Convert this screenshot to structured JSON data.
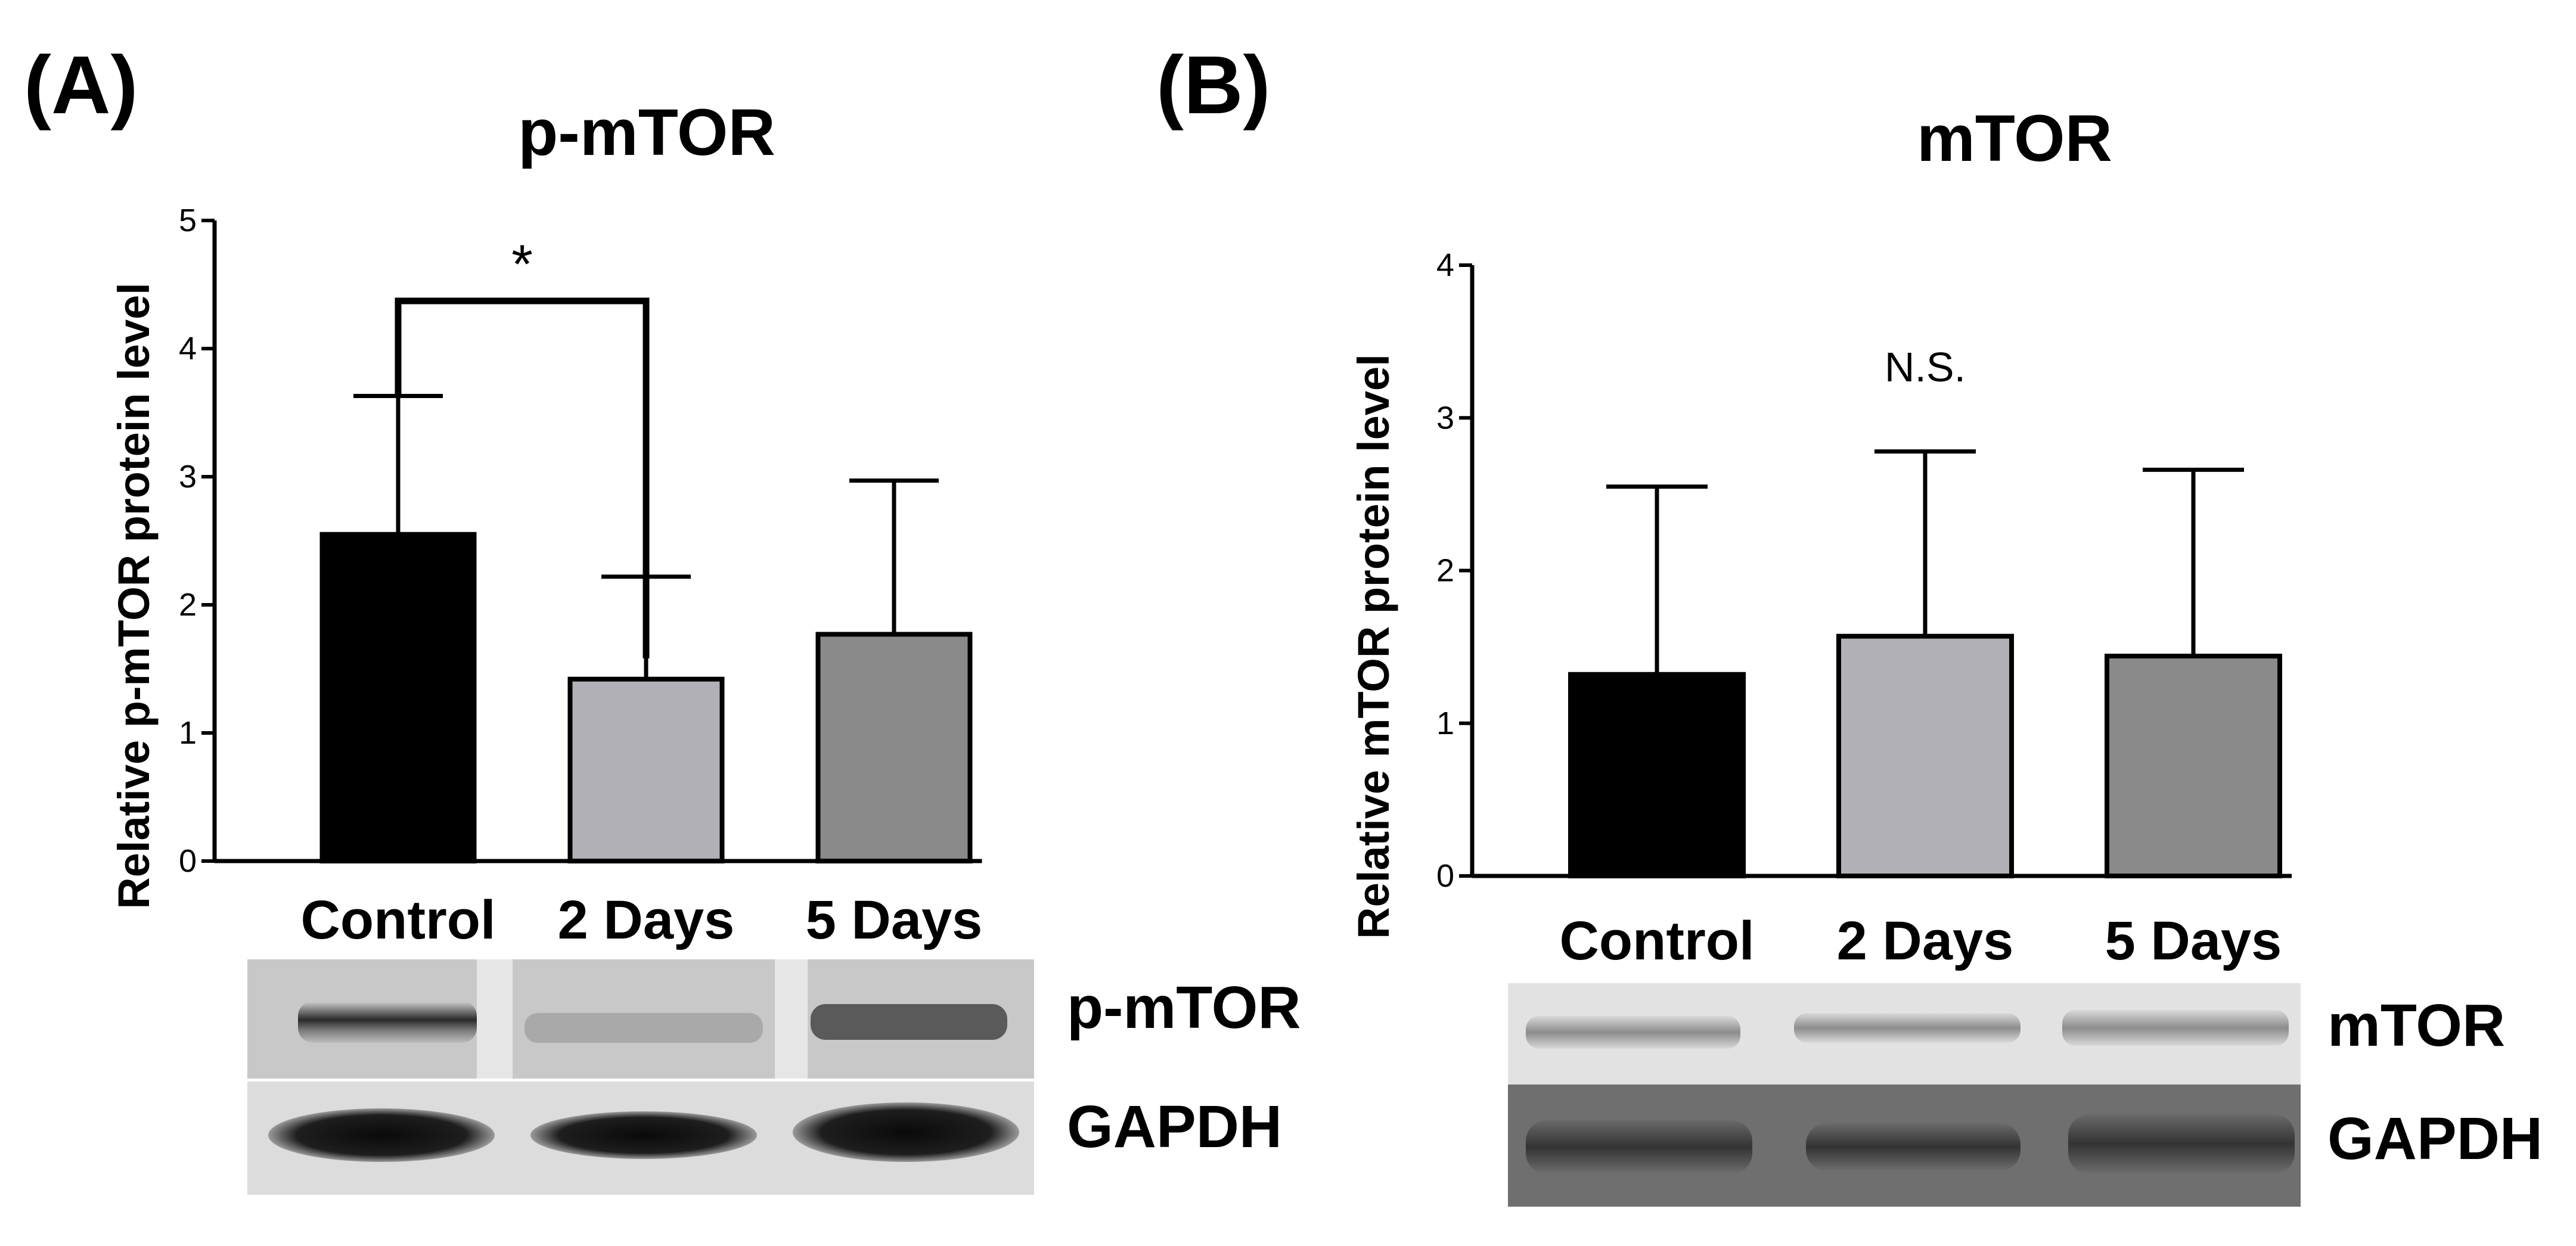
{
  "panels": {
    "a": {
      "label": "(A)"
    },
    "b": {
      "label": "(B)"
    }
  },
  "blots": {
    "a": {
      "band_top": "p-mTOR",
      "band_bottom": "GAPDH"
    },
    "b": {
      "band_top": "mTOR",
      "band_bottom": "GAPDH"
    }
  },
  "chart_data": [
    {
      "type": "bar",
      "title": "p-mTOR",
      "ylabel": "Relative p-mTOR protein level",
      "xlabel": "",
      "categories": [
        "Control",
        "2 Days",
        "5 Days"
      ],
      "values": [
        2.55,
        1.42,
        1.77
      ],
      "error_upper": [
        1.08,
        0.8,
        1.2
      ],
      "ylim": [
        0,
        5
      ],
      "yticks": [
        0,
        1,
        2,
        3,
        4,
        5
      ],
      "bar_colors": [
        "#000000",
        "#b0b0b6",
        "#8a8a8a"
      ],
      "grid": false,
      "significance": {
        "from": "Control",
        "to": "2 Days",
        "label": "*"
      }
    },
    {
      "type": "bar",
      "title": "mTOR",
      "ylabel": "Relative mTOR protein level",
      "xlabel": "",
      "categories": [
        "Control",
        "2 Days",
        "5 Days"
      ],
      "values": [
        1.32,
        1.57,
        1.44
      ],
      "error_upper": [
        1.23,
        1.21,
        1.22
      ],
      "ylim": [
        0,
        4
      ],
      "yticks": [
        0,
        1,
        2,
        3,
        4
      ],
      "bar_colors": [
        "#000000",
        "#b0b0b6",
        "#8a8a8a"
      ],
      "grid": false,
      "annotation": "N.S."
    }
  ]
}
